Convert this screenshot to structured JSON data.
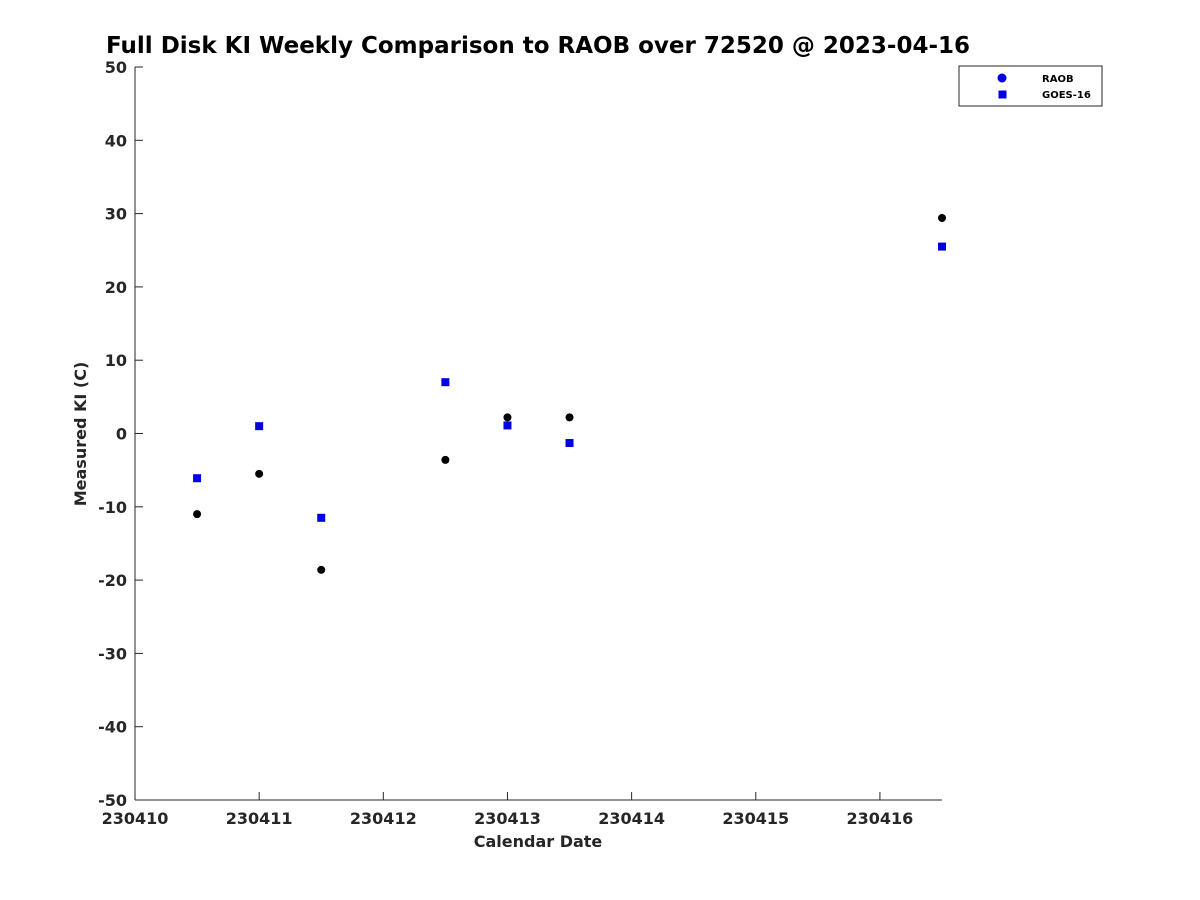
{
  "chart_data": {
    "type": "scatter",
    "title": "Full Disk KI Weekly Comparison to RAOB over 72520 @ 2023-04-16",
    "xlabel": "Calendar Date",
    "ylabel": "Measured KI (C)",
    "xlim": [
      230410,
      230416.5
    ],
    "ylim": [
      -50,
      50
    ],
    "xticks": [
      230410,
      230411,
      230412,
      230413,
      230414,
      230415,
      230416
    ],
    "xtick_labels": [
      "230410",
      "230411",
      "230412",
      "230413",
      "230414",
      "230415",
      "230416"
    ],
    "yticks": [
      -50,
      -40,
      -30,
      -20,
      -10,
      0,
      10,
      20,
      30,
      40,
      50
    ],
    "ytick_labels": [
      "-50",
      "-40",
      "-30",
      "-20",
      "-10",
      "0",
      "10",
      "20",
      "30",
      "40",
      "50"
    ],
    "grid": false,
    "legend_position": "top-right",
    "series": [
      {
        "name": "RAOB",
        "marker": "circle",
        "color": "#000000",
        "legend_color": "#0000e0",
        "x": [
          230410.5,
          230411.0,
          230411.5,
          230412.5,
          230413.0,
          230413.5,
          230416.5
        ],
        "y": [
          -11.0,
          -5.5,
          -18.6,
          -3.6,
          2.2,
          2.2,
          29.4
        ]
      },
      {
        "name": "GOES-16",
        "marker": "square",
        "color": "#0000e0",
        "legend_color": "#0000e0",
        "x": [
          230410.5,
          230411.0,
          230411.5,
          230412.5,
          230413.0,
          230413.5,
          230416.5
        ],
        "y": [
          -6.1,
          1.0,
          -11.5,
          7.0,
          1.1,
          -1.3,
          25.5
        ]
      }
    ]
  }
}
